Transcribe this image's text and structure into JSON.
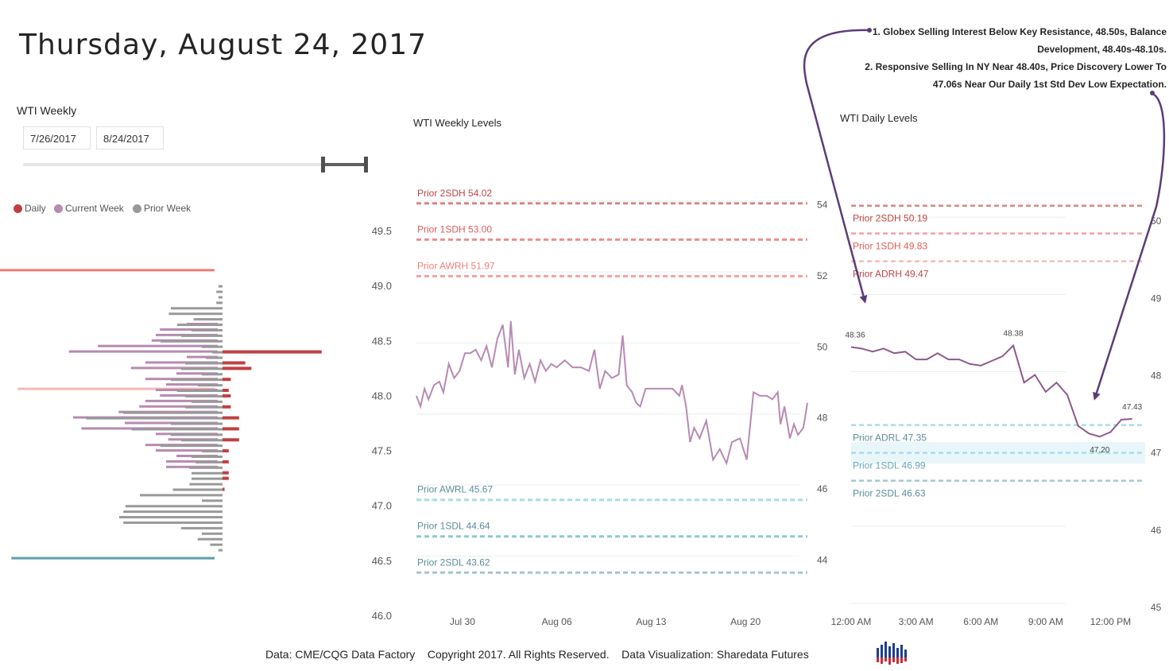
{
  "header": {
    "title": "Thursday, August 24, 2017"
  },
  "slicer": {
    "label": "WTI Weekly",
    "start_date": "7/26/2017",
    "end_date": "8/24/2017",
    "selection_fraction": [
      0.87,
      1.0
    ]
  },
  "legend": [
    {
      "label": "Daily",
      "color": "#c0403f"
    },
    {
      "label": "Current Week",
      "color": "#b78ab2"
    },
    {
      "label": "Prior Week",
      "color": "#999999"
    }
  ],
  "annotations": [
    "1. Globex Selling Interest Below Key Resistance, 48.50s, Balance",
    "Development, 48.40s-48.10s.",
    "2. Responsive Selling In NY Near 48.40s, Price Discovery Lower To",
    "47.06s Near Our Daily 1st Std Dev Low Expectation."
  ],
  "footer": {
    "text": "Data: CME/CQG Data Factory    Copyright 2017. All Rights Reserved.    Data Visualization: Sharedata Futures"
  },
  "colors": {
    "resistance": "#e05a5a",
    "support": "#4aa3b5",
    "current_week": "#b78ab2",
    "prior_week": "#999999",
    "daily": "#c0403f"
  },
  "chart_data": [
    {
      "id": "profile",
      "type": "bar",
      "orientation": "horizontal",
      "ylim": [
        46.0,
        49.5
      ],
      "yticks": [
        "49.5",
        "49.0",
        "48.5",
        "48.0",
        "47.5",
        "47.0",
        "46.5",
        "46.0"
      ],
      "reference_lines": [
        {
          "price": 49.14,
          "color": "#f07a7a",
          "relative_length": 1.0
        },
        {
          "price": 48.06,
          "color": "#f4b8b8",
          "relative_length": 0.91
        },
        {
          "price": 46.52,
          "color": "#5a9ea8",
          "relative_length": 0.94
        }
      ],
      "series": [
        {
          "name": "Prior Week",
          "color": "#999999",
          "prices": [
            49.0,
            48.95,
            48.9,
            48.85,
            48.8,
            48.75,
            48.7,
            48.65,
            48.6,
            48.55,
            48.5,
            48.45,
            48.4,
            48.35,
            48.3,
            48.25,
            48.2,
            48.15,
            48.1,
            48.05,
            48.0,
            47.95,
            47.9,
            47.85,
            47.8,
            47.75,
            47.7,
            47.65,
            47.6,
            47.55,
            47.5,
            47.45,
            47.4,
            47.35,
            47.3,
            47.25,
            47.2,
            47.15,
            47.1,
            47.05,
            47.0,
            46.95,
            46.9,
            46.85,
            46.8,
            46.75,
            46.7,
            46.65,
            46.6
          ],
          "values": [
            2,
            3,
            2,
            3,
            25,
            26,
            14,
            22,
            15,
            20,
            30,
            10,
            5,
            8,
            18,
            20,
            10,
            25,
            12,
            22,
            18,
            15,
            18,
            48,
            66,
            25,
            44,
            25,
            20,
            30,
            10,
            15,
            13,
            16,
            15,
            15,
            16,
            24,
            40,
            10,
            47,
            48,
            50,
            48,
            20,
            10,
            12,
            6,
            2
          ]
        },
        {
          "name": "Current Week",
          "color": "#b78ab2",
          "values": [
            0,
            0,
            0,
            0,
            0,
            0,
            0,
            15,
            28,
            30,
            32,
            58,
            72,
            15,
            35,
            42,
            20,
            35,
            25,
            30,
            28,
            35,
            38,
            48,
            70,
            45,
            66,
            30,
            24,
            35,
            30,
            20,
            25,
            25,
            0,
            0,
            0,
            0,
            0,
            0,
            0,
            0,
            0,
            0,
            0,
            0,
            0,
            0,
            0
          ]
        },
        {
          "name": "Daily",
          "color": "#c0403f",
          "values": [
            0,
            0,
            0,
            0,
            0,
            0,
            0,
            0,
            0,
            0,
            0,
            0,
            48,
            0,
            11,
            14,
            0,
            4,
            0,
            3,
            4,
            0,
            4,
            0,
            8,
            0,
            8,
            0,
            8,
            0,
            3,
            0,
            3,
            0,
            3,
            3,
            0,
            1,
            0,
            0,
            0,
            0,
            0,
            0,
            0,
            0,
            0,
            0,
            0
          ]
        }
      ]
    },
    {
      "id": "weekly",
      "type": "line",
      "title": "WTI Weekly Levels",
      "ylim": [
        43.0,
        55.0
      ],
      "yticks": [
        "54",
        "52",
        "50",
        "48",
        "46",
        "44"
      ],
      "xticks": [
        "Jul 30",
        "Aug 06",
        "Aug 13",
        "Aug 20"
      ],
      "xtick_days": [
        4,
        11,
        18,
        25
      ],
      "xlim_days": [
        0,
        29
      ],
      "levels": [
        {
          "label": "Prior 2SDH 54.02",
          "value": 54.02,
          "color": "#d98585",
          "text_color": "#c04545"
        },
        {
          "label": "Prior 1SDH 53.00",
          "value": 53.0,
          "color": "#ef8c8c",
          "text_color": "#e05a5a"
        },
        {
          "label": "Prior AWRH 51.97",
          "value": 51.97,
          "color": "#f5a0a0",
          "text_color": "#f08080"
        },
        {
          "label": "Prior AWRL 45.67",
          "value": 45.67,
          "color": "#a8dcea",
          "text_color": "#5a8e9a"
        },
        {
          "label": "Prior 1SDL 44.64",
          "value": 44.64,
          "color": "#8cc8d8",
          "text_color": "#5a8e9a"
        },
        {
          "label": "Prior 2SDL 43.62",
          "value": 43.62,
          "color": "#a5c5d0",
          "text_color": "#5a8e9a"
        }
      ],
      "series": [
        {
          "name": "WTI",
          "color": "#b78ab2",
          "x": [
            0,
            0.3,
            0.6,
            0.9,
            1.3,
            1.7,
            2.0,
            2.4,
            2.8,
            3.2,
            3.6,
            4.0,
            4.4,
            4.8,
            5.2,
            5.6,
            6.0,
            6.4,
            6.8,
            7.0,
            7.3,
            7.6,
            8.0,
            8.4,
            8.8,
            9.2,
            9.6,
            10.0,
            10.4,
            11.0,
            11.6,
            12.2,
            12.8,
            13.2,
            13.6,
            14.0,
            14.5,
            15.0,
            15.3,
            15.6,
            16.0,
            16.3,
            16.6,
            17.0,
            17.5,
            18.0,
            18.5,
            19.0,
            19.5,
            19.7,
            20.0,
            20.3,
            20.6,
            21.0,
            21.5,
            22.0,
            22.5,
            23.0,
            23.4,
            24.0,
            24.5,
            25.0,
            25.5,
            26.0,
            26.4,
            26.8,
            27.0,
            27.3,
            27.7,
            28.0,
            28.3,
            28.7,
            29.0
          ],
          "y": [
            48.6,
            48.3,
            48.8,
            48.5,
            48.9,
            49.0,
            48.7,
            49.5,
            49.1,
            49.3,
            49.8,
            49.8,
            49.9,
            49.6,
            50.0,
            49.4,
            50.2,
            50.6,
            49.4,
            50.7,
            49.2,
            49.9,
            49.1,
            49.5,
            49.0,
            49.6,
            49.3,
            49.5,
            49.4,
            49.6,
            49.4,
            49.4,
            49.3,
            49.9,
            48.8,
            49.3,
            49.1,
            49.2,
            50.3,
            48.9,
            48.7,
            48.4,
            48.3,
            48.8,
            48.8,
            48.8,
            48.8,
            48.8,
            48.6,
            48.9,
            48.3,
            47.3,
            47.7,
            47.4,
            47.9,
            46.8,
            47.1,
            46.7,
            47.3,
            47.4,
            46.8,
            48.7,
            48.6,
            48.6,
            48.5,
            48.7,
            47.8,
            48.3,
            47.4,
            47.8,
            47.5,
            47.7,
            48.4
          ]
        }
      ]
    },
    {
      "id": "daily",
      "type": "line",
      "title": "WTI Daily Levels",
      "ylim": [
        45.0,
        51.0
      ],
      "yticks": [
        "50",
        "49",
        "48",
        "47",
        "46",
        "45"
      ],
      "xticks": [
        "12:00 AM",
        "3:00 AM",
        "6:00 AM",
        "9:00 AM",
        "12:00 PM"
      ],
      "xtick_hours": [
        0,
        3,
        6,
        9,
        12
      ],
      "xlim_hours": [
        0,
        13.6
      ],
      "levels": [
        {
          "label": "Prior 2SDH 50.19",
          "value": 50.19,
          "color": "#d98585",
          "text_color": "#c04545"
        },
        {
          "label": "Prior 1SDH 49.83",
          "value": 49.83,
          "color": "#f2a0a0",
          "text_color": "#e05a5a"
        },
        {
          "label": "Prior ADRH 49.47",
          "value": 49.47,
          "color": "#f5bcbc",
          "text_color": "#c04545"
        },
        {
          "label": "Prior ADRL 47.35",
          "value": 47.35,
          "color": "#a8dcea",
          "text_color": "#5a8e9a"
        },
        {
          "label": "Prior 1SDL 46.99",
          "value": 46.99,
          "color": "#a8dcea",
          "text_color": "#6aa7b6"
        },
        {
          "label": "Prior 2SDL 46.63",
          "value": 46.63,
          "color": "#a5c5d0",
          "text_color": "#5a8e9a"
        }
      ],
      "band": {
        "from": 46.85,
        "to": 47.13,
        "color": "#e8f6fa"
      },
      "series": [
        {
          "name": "WTI",
          "color": "#8c5a8c",
          "x": [
            0,
            0.5,
            1.0,
            1.5,
            2.0,
            2.5,
            3.0,
            3.5,
            4.0,
            4.5,
            5.0,
            5.5,
            6.0,
            6.5,
            7.0,
            7.5,
            8.0,
            8.5,
            9.0,
            9.5,
            10.0,
            10.5,
            11.0,
            11.5,
            12.0,
            12.5,
            13.0
          ],
          "y": [
            48.36,
            48.34,
            48.3,
            48.34,
            48.28,
            48.3,
            48.2,
            48.2,
            48.28,
            48.2,
            48.2,
            48.14,
            48.12,
            48.18,
            48.24,
            48.38,
            47.9,
            48.0,
            47.78,
            47.9,
            47.74,
            47.34,
            47.24,
            47.2,
            47.26,
            47.42,
            47.43
          ]
        }
      ],
      "data_labels": [
        {
          "text": "48.36",
          "x": 0,
          "y": 48.36
        },
        {
          "text": "48.38",
          "x": 7.5,
          "y": 48.38
        },
        {
          "text": "47.20",
          "x": 11.5,
          "y": 47.2
        },
        {
          "text": "47.43",
          "x": 13.0,
          "y": 47.43
        }
      ]
    }
  ]
}
